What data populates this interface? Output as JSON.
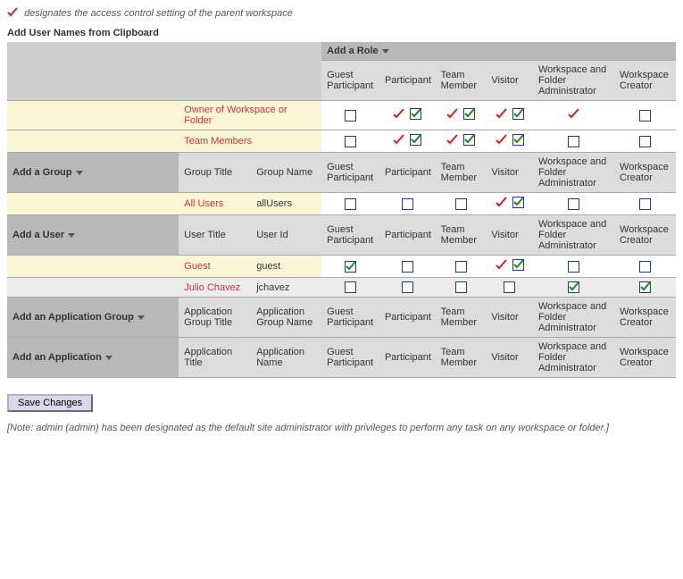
{
  "legend_text": "designates the access control setting of the parent workspace",
  "heading": "Add User Names from Clipboard",
  "add_role_label": "Add a Role",
  "roles": {
    "guest_participant": "Guest Participant",
    "participant": "Participant",
    "team_member": "Team Member",
    "visitor": "Visitor",
    "wf_admin": "Workspace and Folder Administrator",
    "ws_creator": "Workspace Creator"
  },
  "rows": {
    "owner": "Owner of Workspace or Folder",
    "team_members": "Team Members"
  },
  "sections": {
    "add_group": "Add a Group",
    "add_user": "Add a User",
    "add_app_group": "Add an Application Group",
    "add_app": "Add an Application"
  },
  "group_cols": {
    "title": "Group Title",
    "name": "Group Name"
  },
  "user_cols": {
    "title": "User Title",
    "name": "User Id"
  },
  "appg_cols": {
    "title": "Application Group Title",
    "name": "Application Group Name"
  },
  "app_cols": {
    "title": "Application Title",
    "name": "Application Name"
  },
  "group_row": {
    "title": "All Users",
    "name": "allUsers"
  },
  "user_rows": {
    "guest": {
      "title": "Guest",
      "name": "guest"
    },
    "jchavez": {
      "title": "Julio Chavez",
      "name": "jchavez"
    }
  },
  "save_label": "Save Changes",
  "note": "[Note: admin (admin) has been designated as the default site administrator with privileges to perform any task on any workspace or folder.]",
  "colors": {
    "red_check": "#cc2222",
    "green_check": "#1a8a1a",
    "box_border": "#1f3b87",
    "header_a": "#cfcfcf",
    "header_b": "#b8b8b8",
    "cream": "#fbf7d6"
  },
  "matrix": {
    "owner": {
      "gp": "empty",
      "p": "both",
      "tm": "both",
      "v": "both",
      "wfa": "red",
      "wc": "empty"
    },
    "team_members": {
      "gp": "empty",
      "p": "both",
      "tm": "both",
      "v": "both",
      "wfa": "empty",
      "wc": "empty"
    },
    "all_users": {
      "gp": "empty",
      "p": "empty",
      "tm": "empty",
      "v": "both",
      "wfa": "empty",
      "wc": "empty"
    },
    "guest": {
      "gp": "green",
      "p": "empty",
      "tm": "empty",
      "v": "both",
      "wfa": "empty",
      "wc": "empty"
    },
    "jchavez": {
      "gp": "empty",
      "p": "empty",
      "tm": "empty",
      "v": "empty",
      "wfa": "green",
      "wc": "green"
    }
  }
}
